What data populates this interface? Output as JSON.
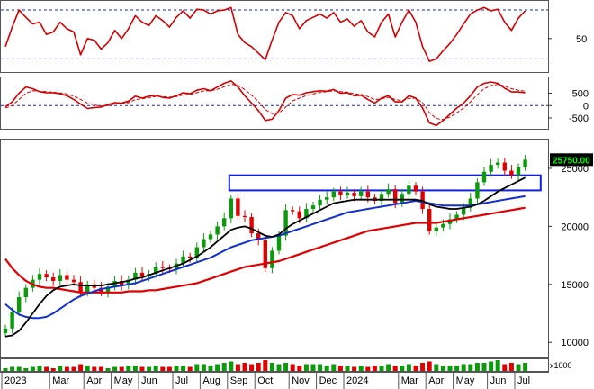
{
  "chart_data": {
    "type": "candlestick",
    "colors": {
      "up": "#0a9a0a",
      "down": "#e00000",
      "ma_short": "#000000",
      "ma_mid": "#1030d0",
      "ma_long": "#e00000",
      "oscillator": "#d40000",
      "ref_line": "#1a2aa0",
      "box": "#1020e0",
      "price_tag_bg": "#000000",
      "price_tag_text": "#00ff00"
    },
    "x_axis": {
      "labels": [
        "2023",
        "Mar",
        "Apr",
        "May",
        "Jun",
        "Jul",
        "Aug",
        "Sep",
        "Oct",
        "Nov",
        "Dec",
        "2024",
        "Mar",
        "Apr",
        "May",
        "Jun",
        "Jul"
      ],
      "label_positions": [
        0,
        7,
        12,
        16,
        20,
        25,
        29,
        33,
        37,
        42,
        46,
        50,
        58,
        62,
        66,
        71,
        75
      ]
    },
    "price_panel": {
      "y_ticks": [
        10000,
        15000,
        20000,
        25000
      ],
      "ylim": [
        8700,
        27400
      ],
      "last_price_label": "25750.00",
      "last_price": 25750,
      "highlight_box": {
        "x_from": 33,
        "x_to": 78,
        "y_low": 23100,
        "y_high": 24400
      },
      "close": [
        11200,
        12600,
        13900,
        14700,
        15400,
        15900,
        15600,
        15300,
        15800,
        15400,
        15200,
        14300,
        15000,
        14700,
        14300,
        14800,
        15300,
        14900,
        15400,
        16000,
        15700,
        15900,
        16500,
        16400,
        16300,
        16800,
        17400,
        17300,
        18200,
        18900,
        19300,
        20000,
        20700,
        22400,
        20900,
        20800,
        19400,
        18800,
        16400,
        17900,
        19200,
        21400,
        21300,
        20700,
        21500,
        21800,
        22300,
        22500,
        23000,
        22700,
        22900,
        22600,
        23000,
        22500,
        22200,
        22800,
        23200,
        22000,
        22800,
        23500,
        23000,
        21500,
        19600,
        19900,
        20200,
        20600,
        21000,
        21600,
        22400,
        23800,
        24700,
        25300,
        25500,
        24800,
        24400,
        25100,
        25750
      ],
      "ma_short": [
        10500,
        10600,
        11000,
        11700,
        12500,
        13300,
        14000,
        14500,
        14800,
        14900,
        15000,
        14900,
        14900,
        14900,
        14900,
        15000,
        15100,
        15200,
        15300,
        15500,
        15600,
        15800,
        16000,
        16200,
        16400,
        16600,
        16800,
        17100,
        17400,
        17800,
        18200,
        18700,
        19200,
        19700,
        19900,
        20000,
        19800,
        19500,
        19200,
        19100,
        19300,
        19800,
        20200,
        20500,
        20800,
        21100,
        21400,
        21700,
        22000,
        22100,
        22200,
        22300,
        22300,
        22300,
        22300,
        22300,
        22300,
        22300,
        22300,
        22300,
        22300,
        22200,
        21900,
        21700,
        21600,
        21500,
        21500,
        21600,
        21700,
        21900,
        22200,
        22600,
        23000,
        23300,
        23600,
        23900,
        24200
      ],
      "ma_mid": [
        13300,
        12800,
        12400,
        12200,
        12100,
        12100,
        12200,
        12500,
        12900,
        13300,
        13700,
        14000,
        14200,
        14400,
        14600,
        14700,
        14800,
        14900,
        15000,
        15100,
        15300,
        15500,
        15700,
        15900,
        16100,
        16300,
        16500,
        16700,
        16900,
        17100,
        17300,
        17600,
        17900,
        18200,
        18400,
        18600,
        18800,
        18900,
        19000,
        19100,
        19200,
        19400,
        19600,
        19800,
        20000,
        20200,
        20400,
        20600,
        20800,
        21000,
        21200,
        21300,
        21400,
        21500,
        21600,
        21700,
        21800,
        21900,
        22000,
        22100,
        22200,
        22100,
        22000,
        21900,
        21800,
        21800,
        21800,
        21800,
        21800,
        21900,
        22000,
        22100,
        22200,
        22300,
        22400,
        22500,
        22600
      ],
      "ma_long": [
        17200,
        16400,
        15800,
        15300,
        15000,
        14800,
        14700,
        14700,
        14600,
        14500,
        14400,
        14300,
        14300,
        14300,
        14300,
        14300,
        14300,
        14300,
        14400,
        14400,
        14400,
        14500,
        14500,
        14600,
        14700,
        14800,
        14900,
        15000,
        15100,
        15300,
        15500,
        15700,
        15900,
        16100,
        16300,
        16500,
        16600,
        16700,
        16800,
        16900,
        17000,
        17200,
        17400,
        17600,
        17800,
        18000,
        18200,
        18400,
        18600,
        18800,
        19000,
        19200,
        19400,
        19600,
        19700,
        19800,
        19900,
        20000,
        20100,
        20200,
        20300,
        20300,
        20300,
        20300,
        20400,
        20500,
        20600,
        20700,
        20800,
        20900,
        21000,
        21100,
        21200,
        21300,
        21400,
        21500,
        21600
      ]
    },
    "rsi_panel": {
      "y_ticks": [
        50
      ],
      "ylim": [
        10,
        95
      ],
      "ref_lines": [
        25,
        85
      ],
      "values": [
        40,
        64,
        85,
        76,
        68,
        70,
        55,
        58,
        70,
        62,
        58,
        30,
        50,
        48,
        37,
        45,
        60,
        50,
        62,
        78,
        70,
        66,
        78,
        72,
        64,
        76,
        84,
        75,
        86,
        85,
        80,
        84,
        85,
        88,
        55,
        45,
        40,
        32,
        24,
        48,
        70,
        82,
        78,
        62,
        72,
        76,
        80,
        75,
        82,
        70,
        74,
        65,
        72,
        58,
        52,
        70,
        80,
        52,
        70,
        85,
        70,
        40,
        22,
        25,
        35,
        44,
        55,
        68,
        80,
        85,
        88,
        84,
        86,
        70,
        60,
        75,
        84
      ]
    },
    "macd_panel": {
      "y_ticks": [
        500,
        0,
        -500
      ],
      "ylim": [
        -900,
        1100
      ],
      "ref_lines": [
        0
      ],
      "macd": [
        -50,
        150,
        500,
        750,
        680,
        560,
        520,
        520,
        480,
        400,
        250,
        60,
        -120,
        -80,
        -60,
        40,
        120,
        100,
        180,
        380,
        300,
        380,
        420,
        330,
        300,
        400,
        520,
        480,
        620,
        680,
        600,
        750,
        900,
        1000,
        750,
        400,
        100,
        -200,
        -600,
        -550,
        -200,
        300,
        450,
        420,
        520,
        560,
        600,
        580,
        650,
        500,
        520,
        400,
        420,
        250,
        100,
        300,
        400,
        150,
        150,
        400,
        300,
        -100,
        -700,
        -800,
        -600,
        -350,
        -100,
        100,
        400,
        750,
        900,
        950,
        900,
        700,
        550,
        550,
        520
      ],
      "signal": [
        -100,
        0,
        250,
        500,
        600,
        580,
        560,
        540,
        510,
        470,
        380,
        250,
        100,
        20,
        -20,
        0,
        60,
        80,
        120,
        240,
        280,
        320,
        370,
        360,
        340,
        360,
        430,
        450,
        520,
        590,
        600,
        660,
        760,
        860,
        820,
        650,
        420,
        160,
        -160,
        -330,
        -300,
        -60,
        190,
        300,
        400,
        470,
        530,
        560,
        600,
        560,
        540,
        480,
        450,
        360,
        240,
        270,
        330,
        250,
        200,
        290,
        300,
        120,
        -280,
        -520,
        -560,
        -460,
        -290,
        -100,
        150,
        440,
        680,
        810,
        860,
        790,
        680,
        620,
        580
      ]
    },
    "volume_panel": {
      "unit_label": "x1000",
      "values": [
        2,
        3,
        3,
        2,
        3,
        4,
        3,
        2,
        4,
        3,
        3,
        5,
        4,
        3,
        3,
        2,
        3,
        3,
        4,
        4,
        3,
        3,
        4,
        3,
        3,
        4,
        4,
        3,
        5,
        5,
        4,
        5,
        6,
        7,
        5,
        6,
        5,
        6,
        8,
        6,
        5,
        6,
        5,
        4,
        5,
        5,
        5,
        4,
        5,
        4,
        4,
        3,
        4,
        3,
        4,
        4,
        5,
        4,
        4,
        5,
        4,
        6,
        7,
        5,
        4,
        4,
        4,
        5,
        5,
        6,
        6,
        7,
        8,
        5,
        6,
        5,
        6
      ]
    }
  }
}
